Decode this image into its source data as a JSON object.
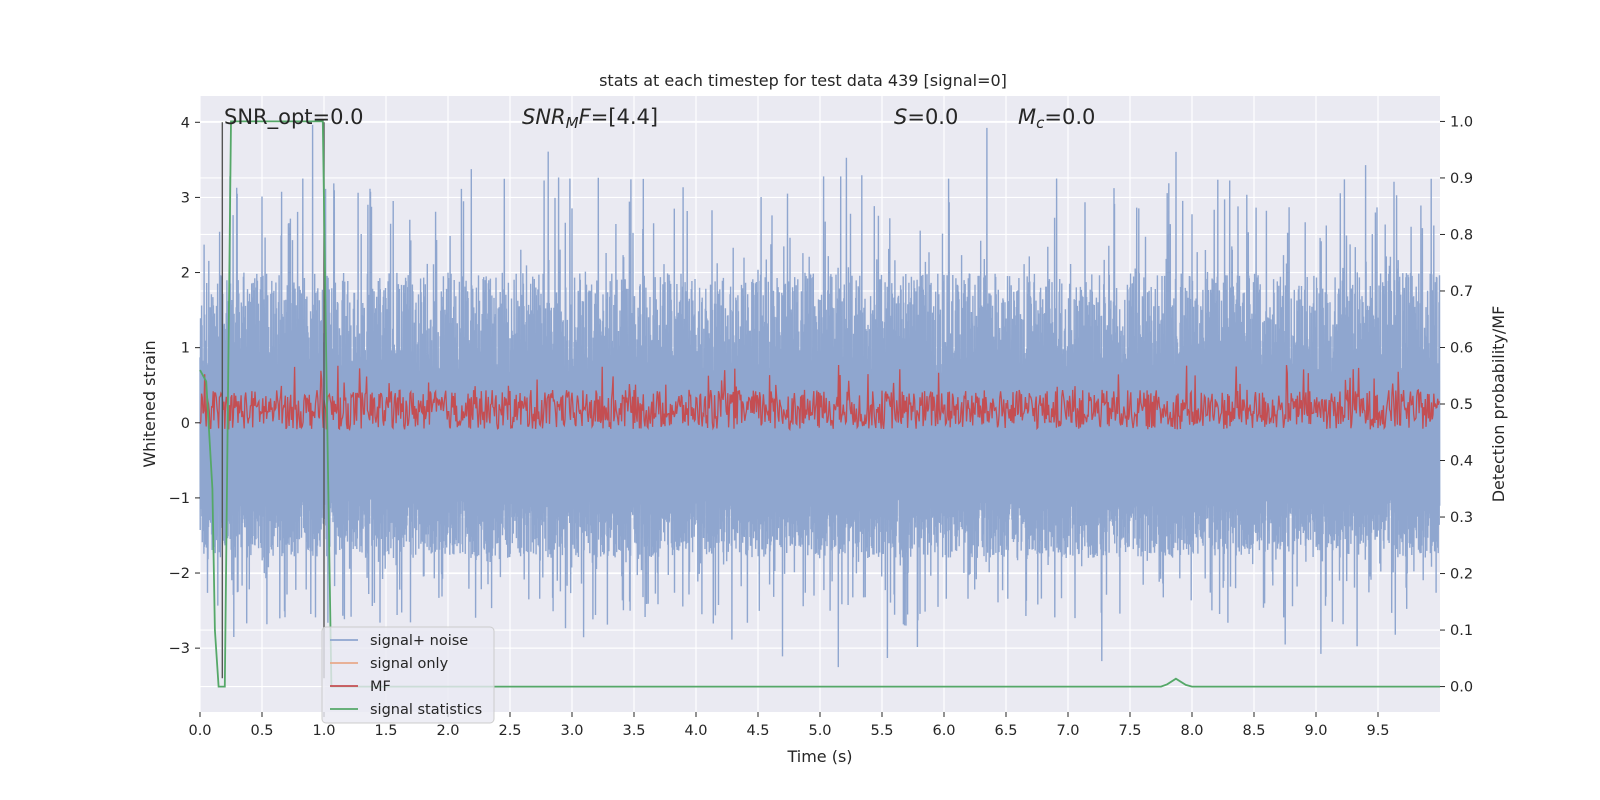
{
  "chart_data": {
    "type": "line",
    "title": "stats at each timestep for test data 439 [signal=0]",
    "xlabel": "Time (s)",
    "ylabel_left": "Whitened strain",
    "ylabel_right": "Detection probability/MF",
    "xlim": [
      0.0,
      10.0
    ],
    "ylim_left": [
      -3.85,
      4.35
    ],
    "ylim_right": [
      -0.045,
      1.045
    ],
    "x_ticks": [
      "0.0",
      "0.5",
      "1.0",
      "1.5",
      "2.0",
      "2.5",
      "3.0",
      "3.5",
      "4.0",
      "4.5",
      "5.0",
      "5.5",
      "6.0",
      "6.5",
      "7.0",
      "7.5",
      "8.0",
      "8.5",
      "9.0",
      "9.5"
    ],
    "y_left_ticks": [
      "−3",
      "−2",
      "−1",
      "0",
      "1",
      "2",
      "3",
      "4"
    ],
    "y_right_ticks": [
      "0.0",
      "0.1",
      "0.2",
      "0.3",
      "0.4",
      "0.5",
      "0.6",
      "0.7",
      "0.8",
      "0.9",
      "1.0"
    ],
    "grid": true,
    "legend_position": "lower-left",
    "annotations": {
      "snr_opt": "SNR_opt=0.0",
      "snr_mf_italic": "SNR",
      "snr_mf_sub": "M",
      "snr_mf_italic2": "F",
      "snr_mf_rest": "=[4.4]",
      "s_italic": "S",
      "s_rest": "=0.0",
      "mc_italic": "M",
      "mc_sub": "c",
      "mc_rest": "=0.0"
    },
    "series": [
      {
        "name": "signal+ noise",
        "color": "#8fa6cf",
        "axis": "left",
        "description_values": "noise, roughly -3.4 to 4.0"
      },
      {
        "name": "signal only",
        "color": "#e8a98a",
        "axis": "left"
      },
      {
        "name": "MF",
        "color": "#c44e52",
        "axis": "right",
        "typical_range": [
          0.46,
          0.55
        ]
      },
      {
        "name": "signal statistics",
        "color": "#55a868",
        "axis": "right",
        "x": [
          0.0,
          0.05,
          0.1,
          0.12,
          0.15,
          0.2,
          0.25,
          0.4,
          0.6,
          0.8,
          0.99,
          1.02,
          1.06,
          1.1,
          2.0,
          4.0,
          6.0,
          7.5,
          7.75,
          7.8,
          7.87,
          7.95,
          8.0,
          8.5,
          9.0,
          9.5,
          10.0
        ],
        "y": [
          0.56,
          0.54,
          0.35,
          0.1,
          0.0,
          0.0,
          1.0,
          1.0,
          1.0,
          1.0,
          1.0,
          0.55,
          0.0,
          0.0,
          0.0,
          0.0,
          0.0,
          0.0,
          0.0,
          0.004,
          0.014,
          0.003,
          0.0,
          0.0,
          0.0,
          0.0,
          0.0
        ]
      },
      {
        "name": "",
        "color": "#555555",
        "axis": "left",
        "kind": "vertical-markers",
        "x": [
          0.18,
          1.0
        ]
      }
    ]
  }
}
